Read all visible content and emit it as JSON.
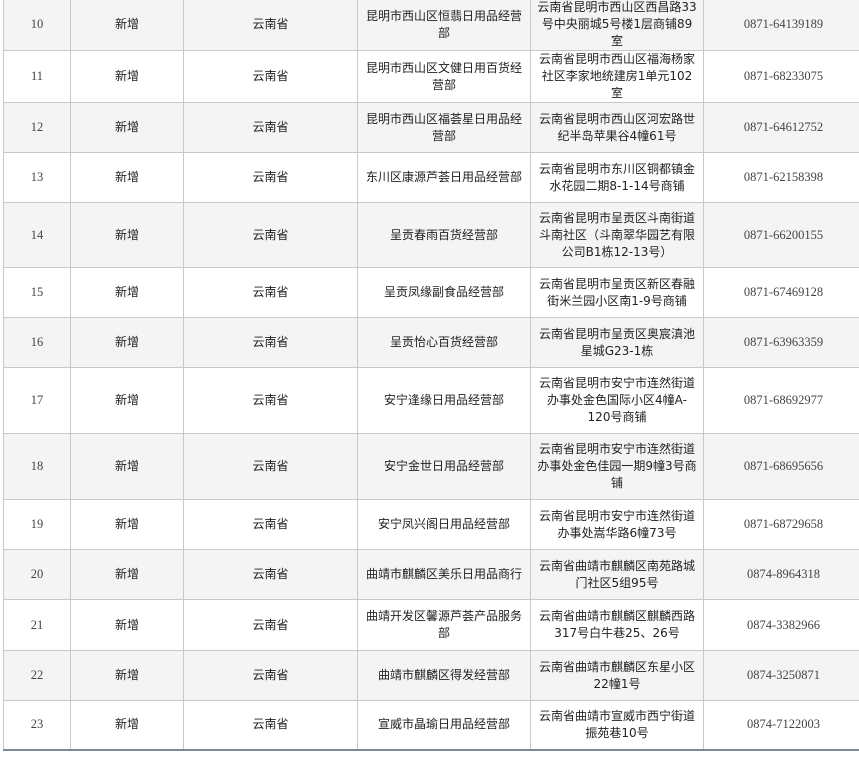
{
  "rows": [
    {
      "no": "10",
      "type": "新增",
      "province": "云南省",
      "name": "昆明市西山区恒翡日用品经营部",
      "address": "云南省昆明市西山区西昌路33号中央丽城5号楼1层商铺89室",
      "phone": "0871-64139189"
    },
    {
      "no": "11",
      "type": "新增",
      "province": "云南省",
      "name": "昆明市西山区文健日用百货经营部",
      "address": "云南省昆明市西山区福海杨家社区李家地统建房1单元102室",
      "phone": "0871-68233075"
    },
    {
      "no": "12",
      "type": "新增",
      "province": "云南省",
      "name": "昆明市西山区福荟星日用品经营部",
      "address": "云南省昆明市西山区河宏路世纪半岛苹果谷4幢61号",
      "phone": "0871-64612752"
    },
    {
      "no": "13",
      "type": "新增",
      "province": "云南省",
      "name": "东川区康源芦荟日用品经营部",
      "address": "云南省昆明市东川区铜都镇金水花园二期8-1-14号商铺",
      "phone": "0871-62158398"
    },
    {
      "no": "14",
      "type": "新增",
      "province": "云南省",
      "name": "呈贡春雨百货经营部",
      "address": "云南省昆明市呈贡区斗南街道斗南社区（斗南翠华园艺有限公司B1栋12-13号）",
      "phone": "0871-66200155"
    },
    {
      "no": "15",
      "type": "新增",
      "province": "云南省",
      "name": "呈贡凤缘副食品经营部",
      "address": "云南省昆明市呈贡区新区春融街米兰园小区南1-9号商铺",
      "phone": "0871-67469128"
    },
    {
      "no": "16",
      "type": "新增",
      "province": "云南省",
      "name": "呈贡怡心百货经营部",
      "address": "云南省昆明市呈贡区奥宸滇池星城G23-1栋",
      "phone": "0871-63963359"
    },
    {
      "no": "17",
      "type": "新增",
      "province": "云南省",
      "name": "安宁逢缘日用品经营部",
      "address": "云南省昆明市安宁市连然街道办事处金色国际小区4幢A-120号商铺",
      "phone": "0871-68692977"
    },
    {
      "no": "18",
      "type": "新增",
      "province": "云南省",
      "name": "安宁金世日用品经营部",
      "address": "云南省昆明市安宁市连然街道办事处金色佳园一期9幢3号商铺",
      "phone": "0871-68695656"
    },
    {
      "no": "19",
      "type": "新增",
      "province": "云南省",
      "name": "安宁凤兴阁日用品经营部",
      "address": "云南省昆明市安宁市连然街道办事处嵩华路6幢73号",
      "phone": "0871-68729658"
    },
    {
      "no": "20",
      "type": "新增",
      "province": "云南省",
      "name": "曲靖市麒麟区美乐日用品商行",
      "address": "云南省曲靖市麒麟区南苑路城门社区5组95号",
      "phone": "0874-8964318"
    },
    {
      "no": "21",
      "type": "新增",
      "province": "云南省",
      "name": "曲靖开发区馨源芦荟产品服务部",
      "address": "云南省曲靖市麒麟区麒麟西路317号白牛巷25、26号",
      "phone": "0874-3382966"
    },
    {
      "no": "22",
      "type": "新增",
      "province": "云南省",
      "name": "曲靖市麒麟区得发经营部",
      "address": "云南省曲靖市麒麟区东星小区22幢1号",
      "phone": "0874-3250871"
    },
    {
      "no": "23",
      "type": "新增",
      "province": "云南省",
      "name": "宣威市晶瑜日用品经营部",
      "address": "云南省曲靖市宣威市西宁街道振苑巷10号",
      "phone": "0874-7122003"
    }
  ]
}
